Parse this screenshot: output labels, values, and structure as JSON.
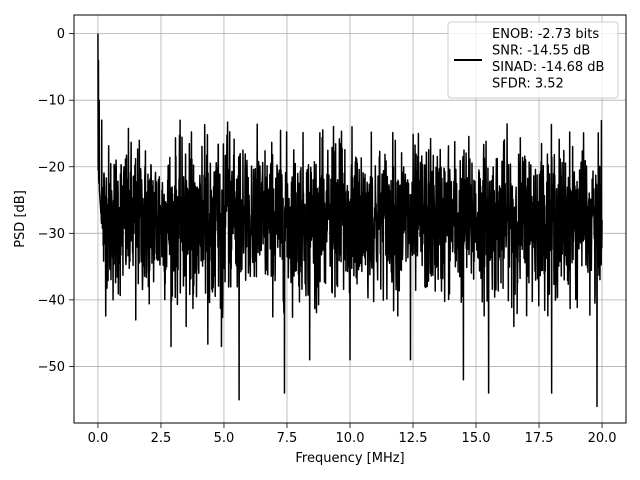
{
  "chart_data": {
    "type": "line",
    "title": "",
    "xlabel": "Frequency [MHz]",
    "ylabel": "PSD [dB]",
    "xlim": [
      -0.95,
      20.95
    ],
    "ylim": [
      -58.5,
      2.8
    ],
    "xticks": [
      0.0,
      2.5,
      5.0,
      7.5,
      10.0,
      12.5,
      15.0,
      17.5,
      20.0
    ],
    "xtick_labels": [
      "0.0",
      "2.5",
      "5.0",
      "7.5",
      "10.0",
      "12.5",
      "15.0",
      "17.5",
      "20.0"
    ],
    "yticks": [
      0,
      -10,
      -20,
      -30,
      -40,
      -50
    ],
    "ytick_labels": [
      "0",
      "−10",
      "−20",
      "−30",
      "−40",
      "−50"
    ],
    "grid": true,
    "legend_position": "top-right",
    "line_color": "#000000",
    "series": [
      {
        "name": "ENOB: -2.73 bits\nSNR: -14.55 dB\nSINAD: -14.68 dB\nSFDR: 3.52",
        "x_range": [
          0,
          20
        ],
        "approx_points": [
          [
            0.0,
            0
          ],
          [
            0.02,
            -4
          ],
          [
            0.05,
            -10
          ],
          [
            0.1,
            -26
          ],
          [
            0.15,
            -13
          ],
          [
            0.3,
            -33
          ],
          [
            0.6,
            -40
          ],
          [
            1.5,
            -43
          ],
          [
            2.0,
            -38
          ],
          [
            2.9,
            -47
          ],
          [
            3.5,
            -44
          ],
          [
            4.0,
            -36
          ],
          [
            4.9,
            -47
          ],
          [
            5.6,
            -55
          ],
          [
            7.4,
            -54
          ],
          [
            8.4,
            -49
          ],
          [
            10.0,
            -49
          ],
          [
            12.4,
            -49
          ],
          [
            14.5,
            -52
          ],
          [
            15.5,
            -54
          ],
          [
            16.5,
            -44
          ],
          [
            18.0,
            -54
          ],
          [
            19.8,
            -56
          ],
          [
            20.0,
            -28
          ]
        ],
        "noise_floor_mean_db": -28,
        "upper_envelope_db": -16,
        "lower_envelope_db": -40
      }
    ]
  }
}
